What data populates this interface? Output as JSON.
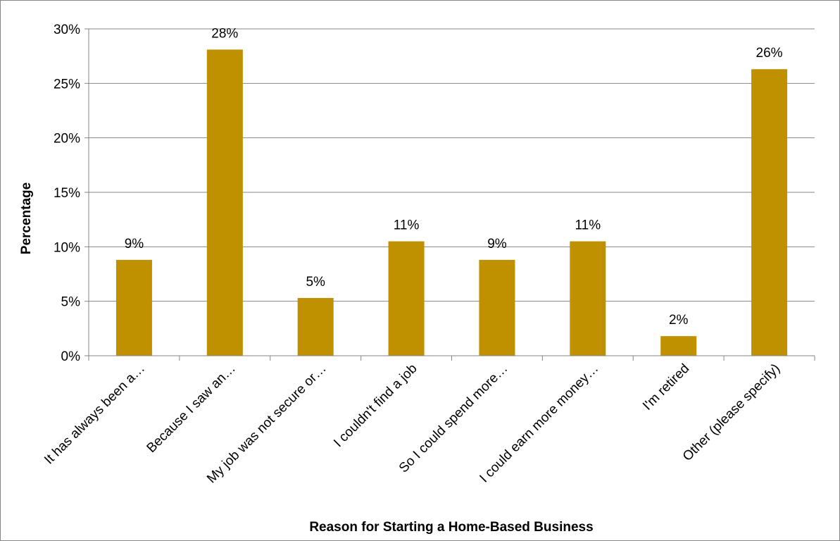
{
  "chart_data": {
    "type": "bar",
    "title": "",
    "xlabel": "Reason for Starting a Home-Based Business",
    "ylabel": "Percentage",
    "ylim": [
      0,
      30
    ],
    "y_tick_step": 5,
    "y_tick_format": "percent",
    "grid": true,
    "legend": "none",
    "bar_color": "#BF9000",
    "categories": [
      "It has always been a…",
      "Because I saw an…",
      "My job was not secure or…",
      "I couldn't find a job",
      "So I could spend more…",
      "I could earn more money…",
      "I'm retired",
      "Other (please specify)"
    ],
    "values": [
      8.8,
      28.1,
      5.3,
      10.5,
      8.8,
      10.5,
      1.8,
      26.3
    ],
    "data_labels": [
      "9%",
      "28%",
      "5%",
      "11%",
      "9%",
      "11%",
      "2%",
      "26%"
    ]
  }
}
